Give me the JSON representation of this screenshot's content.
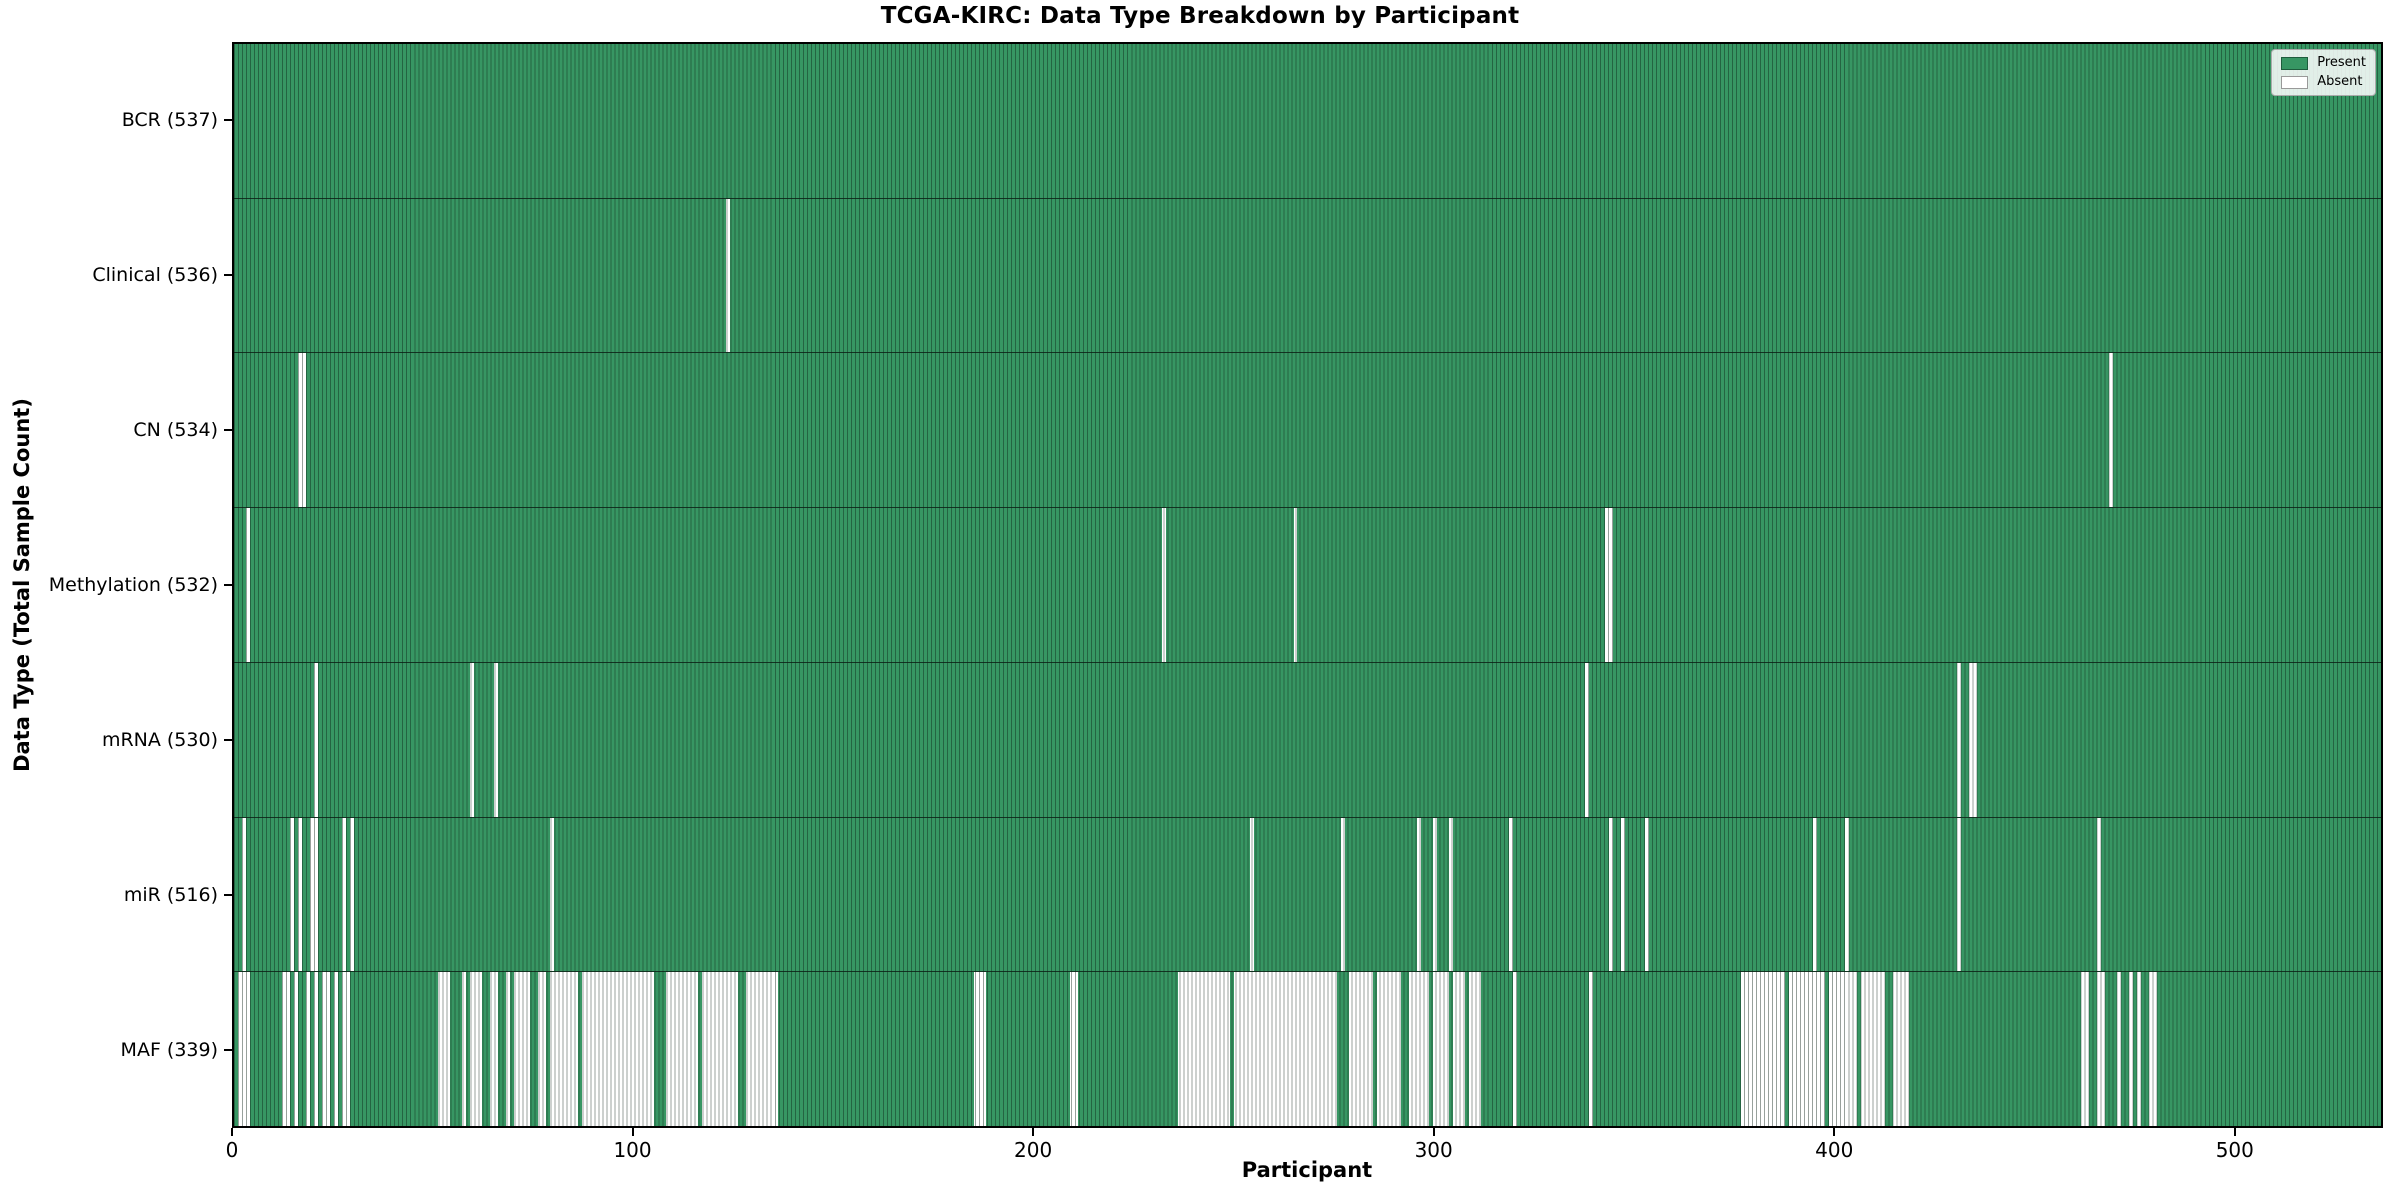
{
  "chart_data": {
    "type": "heatmap",
    "title": "TCGA-KIRC: Data Type Breakdown by Participant",
    "xlabel": "Participant",
    "ylabel": "Data Type (Total Sample Count)",
    "n_participants": 537,
    "x_ticks": [
      0,
      100,
      200,
      300,
      400,
      500
    ],
    "grid": false,
    "legend_position": "upper right",
    "colors": {
      "present": "#379663",
      "absent": "#ffffff",
      "bar_edge": "#0a1e14",
      "present_swatch_border": "#1e5c3c",
      "absent_swatch_border": "#999999"
    },
    "legend": [
      {
        "label": "Present",
        "color": "#379663"
      },
      {
        "label": "Absent",
        "color": "#ffffff"
      }
    ],
    "rows": [
      {
        "name": "BCR",
        "label": "BCR (537)",
        "present_count": 537,
        "absent_count": 0,
        "absent_participants": []
      },
      {
        "name": "Clinical",
        "label": "Clinical (536)",
        "present_count": 536,
        "absent_count": 1,
        "absent_participants": [
          123
        ]
      },
      {
        "name": "CN",
        "label": "CN (534)",
        "present_count": 534,
        "absent_count": 3,
        "absent_participants": [
          16,
          17,
          469
        ]
      },
      {
        "name": "Methylation",
        "label": "Methylation (532)",
        "present_count": 532,
        "absent_count": 5,
        "absent_participants": [
          3,
          232,
          265,
          343,
          344
        ]
      },
      {
        "name": "mRNA",
        "label": "mRNA (530)",
        "present_count": 530,
        "absent_count": 7,
        "absent_participants": [
          20,
          59,
          65,
          338,
          431,
          434,
          435
        ]
      },
      {
        "name": "miR",
        "label": "miR (516)",
        "present_count": 516,
        "absent_count": 21,
        "absent_participants": [
          2,
          14,
          16,
          19,
          20,
          27,
          29,
          79,
          254,
          277,
          296,
          300,
          304,
          319,
          344,
          347,
          353,
          395,
          403,
          431,
          466
        ]
      },
      {
        "name": "MAF",
        "label": "MAF (339)",
        "present_count": 339,
        "absent_count": 198,
        "absent_participants": [
          [
            1,
            3
          ],
          12,
          13,
          15,
          18,
          20,
          [
            22,
            23
          ],
          25,
          [
            27,
            28
          ],
          [
            51,
            53
          ],
          57,
          [
            59,
            61
          ],
          [
            64,
            65
          ],
          68,
          [
            70,
            73
          ],
          [
            76,
            77
          ],
          [
            79,
            85
          ],
          [
            87,
            104
          ],
          [
            108,
            115
          ],
          [
            117,
            125
          ],
          [
            128,
            135
          ],
          [
            185,
            187
          ],
          [
            209,
            210
          ],
          [
            236,
            248
          ],
          [
            250,
            275
          ],
          [
            279,
            284
          ],
          [
            286,
            291
          ],
          [
            294,
            298
          ],
          [
            300,
            303
          ],
          [
            305,
            307
          ],
          [
            309,
            311
          ],
          320,
          339,
          [
            377,
            387
          ],
          [
            389,
            397
          ],
          [
            399,
            405
          ],
          [
            407,
            412
          ],
          [
            415,
            418
          ],
          462,
          463,
          [
            466,
            467
          ],
          471,
          474,
          476,
          [
            479,
            480
          ]
        ]
      }
    ]
  }
}
